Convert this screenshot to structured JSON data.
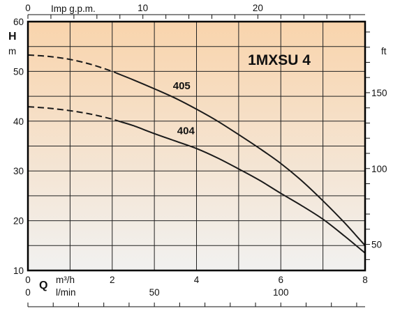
{
  "chart_data": {
    "type": "line",
    "title": "1MXSU 4",
    "x_primary": {
      "letter": "Q",
      "unit": "m³/h",
      "range": [
        0,
        8
      ],
      "ticks": [
        0,
        2,
        4,
        6,
        8
      ],
      "minor_step": 1
    },
    "x_secondary_bottom": {
      "unit": "l/min",
      "range_l_per_min": [
        0,
        133.33
      ],
      "ticks": [
        0,
        50,
        100
      ],
      "minor_step": 10
    },
    "x_secondary_top": {
      "unit": "Imp g.p.m.",
      "range_imp_gpm": [
        0,
        29.33
      ],
      "ticks": [
        0,
        10,
        20
      ],
      "minor_step": 2
    },
    "y_primary": {
      "letter": "H",
      "unit": "m",
      "range": [
        10,
        60
      ],
      "ticks": [
        10,
        20,
        30,
        40,
        50,
        60
      ],
      "minor_step": 5
    },
    "y_secondary": {
      "unit": "ft",
      "ticks": [
        50,
        100,
        150
      ],
      "minor_step": 10
    },
    "grid": true,
    "background_gradient": {
      "top": "#f9d4ac",
      "bottom": "#f1f1f0"
    },
    "series": [
      {
        "name": "405",
        "dashed_until_x": 2.1,
        "points": [
          [
            0,
            53.3
          ],
          [
            0.5,
            53.0
          ],
          [
            1,
            52.4
          ],
          [
            1.5,
            51.4
          ],
          [
            2,
            50.0
          ],
          [
            2.5,
            48.3
          ],
          [
            3,
            46.5
          ],
          [
            3.5,
            44.6
          ],
          [
            4,
            42.4
          ],
          [
            4.5,
            40.0
          ],
          [
            5,
            37.3
          ],
          [
            5.5,
            34.5
          ],
          [
            6,
            31.5
          ],
          [
            6.5,
            28.0
          ],
          [
            7,
            24.0
          ],
          [
            7.5,
            19.7
          ],
          [
            8,
            15.0
          ]
        ]
      },
      {
        "name": "404",
        "dashed_until_x": 2.2,
        "points": [
          [
            0,
            42.9
          ],
          [
            0.5,
            42.6
          ],
          [
            1,
            42.1
          ],
          [
            1.5,
            41.4
          ],
          [
            2,
            40.4
          ],
          [
            2.5,
            39.1
          ],
          [
            3,
            37.5
          ],
          [
            3.5,
            36.0
          ],
          [
            4,
            34.5
          ],
          [
            4.5,
            32.6
          ],
          [
            5,
            30.4
          ],
          [
            5.5,
            28.1
          ],
          [
            6,
            25.5
          ],
          [
            6.5,
            23.0
          ],
          [
            7,
            20.3
          ],
          [
            7.5,
            17.0
          ],
          [
            8,
            13.5
          ]
        ]
      }
    ]
  }
}
